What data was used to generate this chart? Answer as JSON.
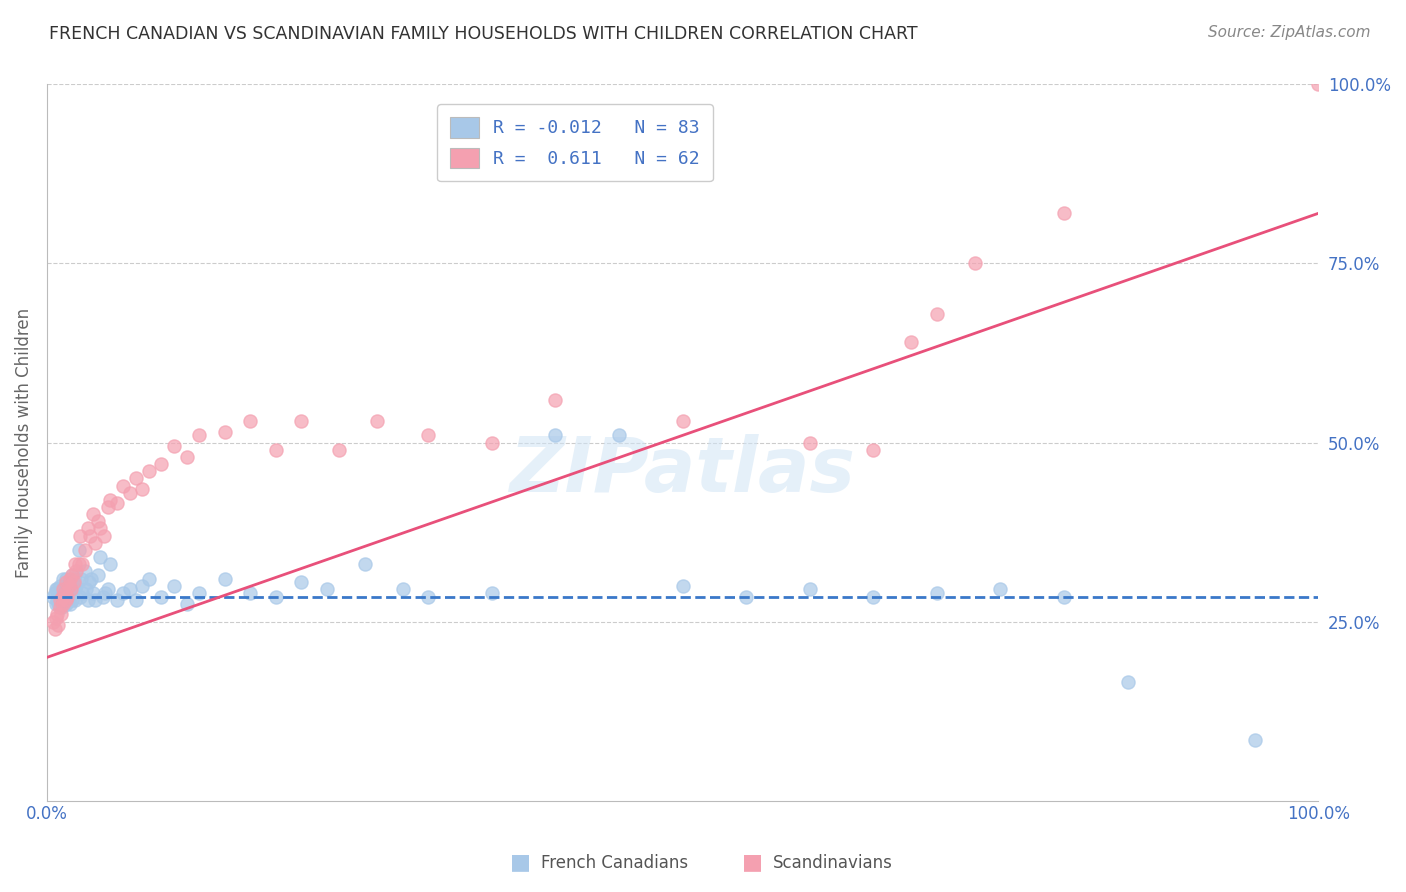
{
  "title": "FRENCH CANADIAN VS SCANDINAVIAN FAMILY HOUSEHOLDS WITH CHILDREN CORRELATION CHART",
  "source": "Source: ZipAtlas.com",
  "ylabel": "Family Households with Children",
  "xlim": [
    0,
    1.0
  ],
  "ylim": [
    0,
    1.0
  ],
  "legend": {
    "blue_label": "French Canadians",
    "pink_label": "Scandinavians",
    "blue_R": "-0.012",
    "blue_N": "83",
    "pink_R": "0.611",
    "pink_N": "62"
  },
  "blue_color": "#a8c8e8",
  "pink_color": "#f4a0b0",
  "blue_line_color": "#3a78c9",
  "pink_line_color": "#e8507a",
  "watermark": "ZIPatlas",
  "background_color": "#ffffff",
  "grid_color": "#cccccc",
  "title_color": "#333333",
  "axis_label_color": "#4472c4",
  "french_canadians": {
    "x": [
      0.005,
      0.006,
      0.007,
      0.007,
      0.008,
      0.008,
      0.009,
      0.009,
      0.01,
      0.01,
      0.01,
      0.011,
      0.011,
      0.012,
      0.012,
      0.013,
      0.013,
      0.013,
      0.014,
      0.014,
      0.015,
      0.015,
      0.015,
      0.016,
      0.016,
      0.017,
      0.017,
      0.018,
      0.018,
      0.019,
      0.02,
      0.02,
      0.021,
      0.022,
      0.022,
      0.023,
      0.025,
      0.026,
      0.027,
      0.028,
      0.03,
      0.031,
      0.032,
      0.033,
      0.035,
      0.036,
      0.038,
      0.04,
      0.042,
      0.044,
      0.046,
      0.048,
      0.05,
      0.055,
      0.06,
      0.065,
      0.07,
      0.075,
      0.08,
      0.09,
      0.1,
      0.11,
      0.12,
      0.14,
      0.16,
      0.18,
      0.2,
      0.22,
      0.25,
      0.28,
      0.3,
      0.35,
      0.4,
      0.45,
      0.5,
      0.55,
      0.6,
      0.65,
      0.7,
      0.75,
      0.8,
      0.85,
      0.95
    ],
    "y": [
      0.285,
      0.29,
      0.275,
      0.295,
      0.28,
      0.295,
      0.285,
      0.275,
      0.3,
      0.28,
      0.27,
      0.29,
      0.275,
      0.285,
      0.27,
      0.295,
      0.28,
      0.31,
      0.285,
      0.275,
      0.31,
      0.295,
      0.275,
      0.3,
      0.285,
      0.295,
      0.28,
      0.305,
      0.275,
      0.29,
      0.315,
      0.28,
      0.295,
      0.31,
      0.28,
      0.3,
      0.35,
      0.285,
      0.31,
      0.29,
      0.32,
      0.295,
      0.28,
      0.305,
      0.31,
      0.29,
      0.28,
      0.315,
      0.34,
      0.285,
      0.29,
      0.295,
      0.33,
      0.28,
      0.29,
      0.295,
      0.28,
      0.3,
      0.31,
      0.285,
      0.3,
      0.275,
      0.29,
      0.31,
      0.29,
      0.285,
      0.305,
      0.295,
      0.33,
      0.295,
      0.285,
      0.29,
      0.51,
      0.51,
      0.3,
      0.285,
      0.295,
      0.285,
      0.29,
      0.295,
      0.285,
      0.165,
      0.085
    ]
  },
  "scandinavians": {
    "x": [
      0.005,
      0.006,
      0.007,
      0.008,
      0.009,
      0.01,
      0.01,
      0.011,
      0.012,
      0.013,
      0.013,
      0.014,
      0.015,
      0.015,
      0.016,
      0.017,
      0.018,
      0.019,
      0.02,
      0.021,
      0.022,
      0.023,
      0.025,
      0.026,
      0.028,
      0.03,
      0.032,
      0.034,
      0.036,
      0.038,
      0.04,
      0.042,
      0.045,
      0.048,
      0.05,
      0.055,
      0.06,
      0.065,
      0.07,
      0.075,
      0.08,
      0.09,
      0.1,
      0.11,
      0.12,
      0.14,
      0.16,
      0.18,
      0.2,
      0.23,
      0.26,
      0.3,
      0.35,
      0.4,
      0.5,
      0.6,
      0.65,
      0.68,
      0.7,
      0.73,
      0.8,
      1.0
    ],
    "y": [
      0.25,
      0.24,
      0.255,
      0.26,
      0.245,
      0.27,
      0.28,
      0.26,
      0.285,
      0.275,
      0.295,
      0.29,
      0.305,
      0.28,
      0.285,
      0.3,
      0.31,
      0.295,
      0.315,
      0.305,
      0.33,
      0.32,
      0.33,
      0.37,
      0.33,
      0.35,
      0.38,
      0.37,
      0.4,
      0.36,
      0.39,
      0.38,
      0.37,
      0.41,
      0.42,
      0.415,
      0.44,
      0.43,
      0.45,
      0.435,
      0.46,
      0.47,
      0.495,
      0.48,
      0.51,
      0.515,
      0.53,
      0.49,
      0.53,
      0.49,
      0.53,
      0.51,
      0.5,
      0.56,
      0.53,
      0.5,
      0.49,
      0.64,
      0.68,
      0.75,
      0.82,
      1.0
    ]
  },
  "pink_line": {
    "x0": 0.0,
    "y0": 0.2,
    "x1": 1.0,
    "y1": 0.82
  },
  "blue_line": {
    "x0": 0.0,
    "y0": 0.285,
    "x1": 1.0,
    "y1": 0.285
  }
}
